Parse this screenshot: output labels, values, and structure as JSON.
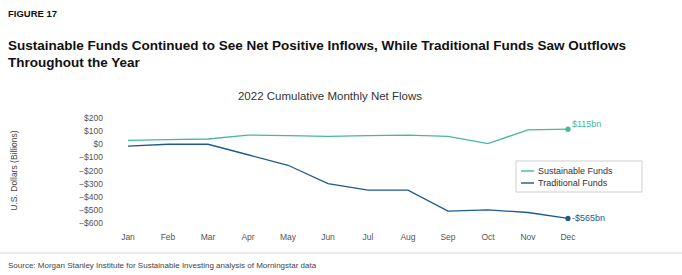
{
  "chart_data": {
    "type": "line",
    "figure_label": "FIGURE 17",
    "title": "Sustainable Funds Continued to See Net Positive Inflows, While Traditional Funds Saw Outflows Throughout the Year",
    "subtitle": "2022 Cumulative Monthly Net Flows",
    "y_label": "U.S. Dollars (Billions)",
    "source": "Source: Morgan Stanley Institute for Sustainable Investing analysis of Morningstar data",
    "categories": [
      "Jan",
      "Feb",
      "Mar",
      "Apr",
      "May",
      "Jun",
      "Jul",
      "Aug",
      "Sep",
      "Oct",
      "Nov",
      "Dec"
    ],
    "series": [
      {
        "name": "Sustainable Funds",
        "color": "#45b89e",
        "values": [
          30,
          35,
          40,
          70,
          65,
          60,
          65,
          70,
          60,
          5,
          110,
          115
        ]
      },
      {
        "name": "Traditional Funds",
        "color": "#1d5a8a",
        "values": [
          -15,
          0,
          0,
          -80,
          -160,
          -300,
          -350,
          -350,
          -510,
          -500,
          -520,
          -565
        ]
      }
    ],
    "annotations": [
      "$115bn",
      "-$565bn"
    ],
    "ylim": [
      -600,
      200
    ],
    "yticks": [
      {
        "value": 200,
        "label": "$200"
      },
      {
        "value": 100,
        "label": "$100"
      },
      {
        "value": 0,
        "label": "$0"
      },
      {
        "value": -100,
        "label": "−$100"
      },
      {
        "value": -200,
        "label": "−$200"
      },
      {
        "value": -300,
        "label": "−$300"
      },
      {
        "value": -400,
        "label": "−$400"
      },
      {
        "value": -500,
        "label": "−$500"
      },
      {
        "value": -600,
        "label": "−$600"
      }
    ],
    "grid": false,
    "legend": "right"
  }
}
